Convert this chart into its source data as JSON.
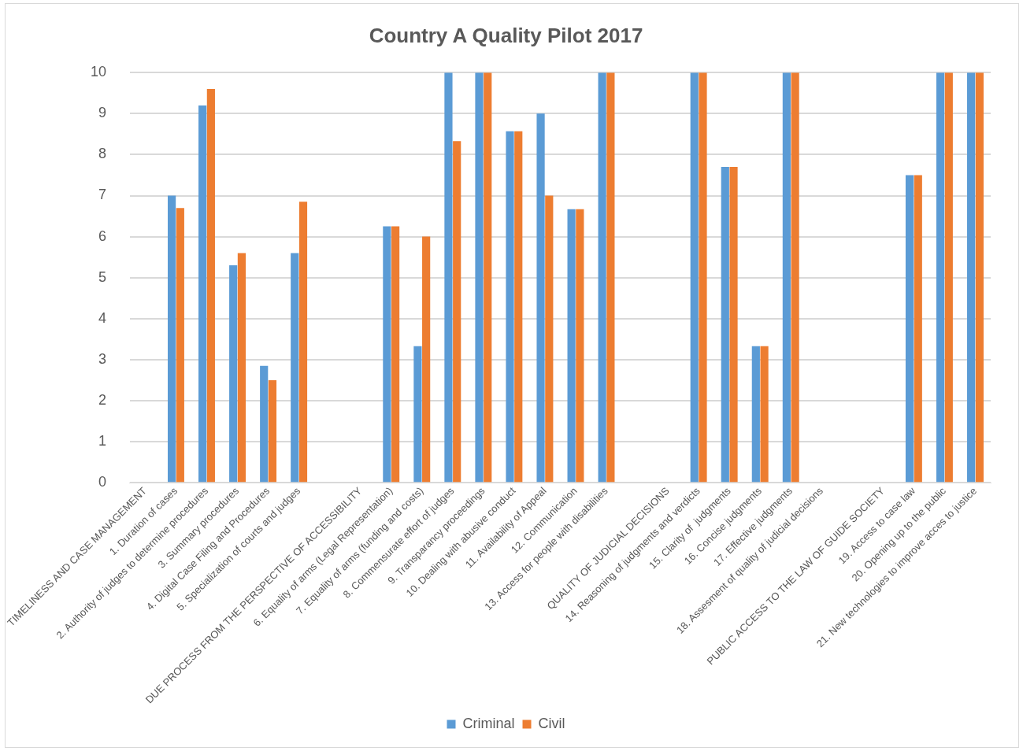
{
  "chart_data": {
    "type": "bar",
    "title": "Country A Quality Pilot 2017",
    "categories": [
      "TIMELINESS AND CASE MANAGEMENT",
      "1. Duration of cases",
      "2. Authority of judges to determine procedures",
      "3. Summary procedures",
      "4. Digital Case Filing and Procedures",
      "5. Specialization of courts and judges",
      null,
      "DUE PROCESS FROM THE PERSPECTIVE OF ACCESSIBILITY",
      "6. Equality of arms (Legal Representation)",
      "7. Equality of arms (funding and costs)",
      "8. Commensurate effort of judges",
      "9. Transparancy proceedings",
      "10. Dealing with abusive conduct",
      "11. Availability of Appeal",
      "12. Communication",
      "13. Access for people with disabilities",
      null,
      "QUALITY OF JUDICIAL DECISIONS",
      "14. Reasoning of judgments and verdicts",
      "15. Clarity of  judgments",
      "16. Concise judgments",
      "17. Effective judgments",
      "18. Assesment of quality of judicial decisions",
      null,
      "PUBLIC ACCESS TO THE LAW OF GUIDE SOCIETY",
      "19. Access to case law",
      "20. Opening up to the public",
      "21. New technologies to improve acces to justice"
    ],
    "series": [
      {
        "name": "Criminal",
        "color": "#5b9bd5",
        "values": [
          null,
          7,
          9.2,
          5.3,
          2.85,
          5.6,
          null,
          null,
          6.25,
          3.33,
          10,
          10,
          8.57,
          9,
          6.67,
          10,
          null,
          null,
          10,
          7.7,
          3.33,
          10,
          0,
          null,
          null,
          7.5,
          10,
          10
        ]
      },
      {
        "name": "Civil",
        "color": "#ed7d31",
        "values": [
          null,
          6.7,
          9.6,
          5.6,
          2.5,
          6.85,
          null,
          null,
          6.25,
          6,
          8.33,
          10,
          8.57,
          7,
          6.67,
          10,
          null,
          null,
          10,
          7.7,
          3.33,
          10,
          0,
          null,
          null,
          7.5,
          10,
          10
        ]
      }
    ],
    "ylim": [
      0,
      10
    ],
    "yticks": [
      0,
      1,
      2,
      3,
      4,
      5,
      6,
      7,
      8,
      9,
      10
    ],
    "grid": "y",
    "legend": "bottom"
  }
}
